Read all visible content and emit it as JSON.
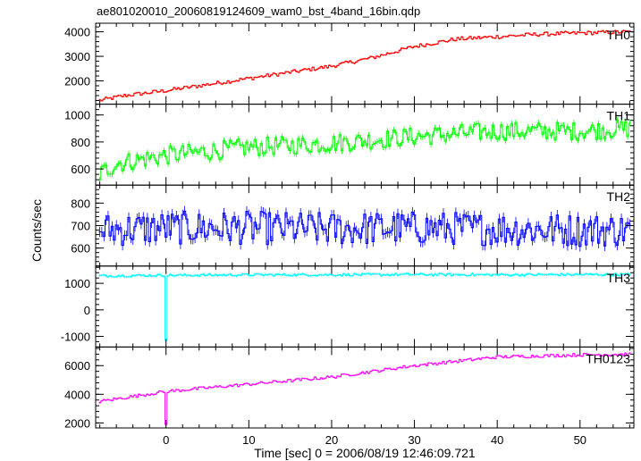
{
  "chart_data": {
    "type": "line",
    "title": "ae801020010_20060819124609_wam0_bst_4band_16bin.qdp",
    "xlabel": "Time [sec] 0 = 2006/08/19 12:46:09.721",
    "ylabel": "Counts/sec",
    "xlim": [
      -8.5,
      56.5
    ],
    "x_ticks": [
      0,
      10,
      20,
      30,
      40,
      50
    ],
    "x_tick_labels": [
      "0",
      "10",
      "20",
      "30",
      "40",
      "50"
    ],
    "bin_width_sec": 0.25,
    "panels": [
      {
        "name": "TH0",
        "color": "#ff0000",
        "ylim": [
          1050,
          4350
        ],
        "y_ticks": [
          2000,
          3000,
          4000
        ],
        "y_tick_labels": [
          "2000",
          "3000",
          "4000"
        ],
        "anchors_x": [
          -8,
          -5,
          0,
          5,
          10,
          15,
          20,
          25,
          30,
          35,
          40,
          45,
          50,
          56
        ],
        "anchors_y": [
          1200,
          1400,
          1600,
          1850,
          2100,
          2350,
          2600,
          2950,
          3400,
          3700,
          3800,
          3900,
          3950,
          4000
        ],
        "noise": 80,
        "err": 70
      },
      {
        "name": "TH1",
        "color": "#00ff00",
        "ylim": [
          480,
          1080
        ],
        "y_ticks": [
          600,
          800,
          1000
        ],
        "y_tick_labels": [
          "600",
          "800",
          "1000"
        ],
        "anchors_x": [
          -8,
          -6,
          0,
          10,
          20,
          30,
          40,
          50,
          56
        ],
        "anchors_y": [
          560,
          640,
          700,
          760,
          790,
          840,
          880,
          880,
          900
        ],
        "noise": 70,
        "err": 45
      },
      {
        "name": "TH2",
        "color": "#0000ff",
        "ylim": [
          520,
          880
        ],
        "y_ticks": [
          600,
          700,
          800
        ],
        "y_tick_labels": [
          "600",
          "700",
          "800"
        ],
        "anchors_x": [
          -8,
          0,
          10,
          20,
          30,
          40,
          50,
          56
        ],
        "anchors_y": [
          680,
          690,
          690,
          685,
          690,
          685,
          680,
          680
        ],
        "noise": 75,
        "err": 45
      },
      {
        "name": "TH3",
        "color": "#00ffff",
        "ylim": [
          -1400,
          1650
        ],
        "y_ticks": [
          -1000,
          0,
          1000
        ],
        "y_tick_labels": [
          "-1000",
          "0",
          "1000"
        ],
        "anchors_x": [
          -8,
          0,
          10,
          20,
          30,
          40,
          50,
          56
        ],
        "anchors_y": [
          1280,
          1300,
          1320,
          1320,
          1330,
          1320,
          1330,
          1330
        ],
        "noise": 45,
        "err": 90,
        "dips": [
          {
            "x": 0,
            "y": -1150
          }
        ]
      },
      {
        "name": "TH0123",
        "color": "#ff00ff",
        "ylim": [
          1650,
          7300
        ],
        "y_ticks": [
          2000,
          4000,
          6000
        ],
        "y_tick_labels": [
          "2000",
          "4000",
          "6000"
        ],
        "anchors_x": [
          -8,
          0,
          10,
          20,
          30,
          40,
          50,
          56
        ],
        "anchors_y": [
          3500,
          4200,
          4700,
          5200,
          6000,
          6600,
          6750,
          6800
        ],
        "noise": 110,
        "err": 110,
        "dips": [
          {
            "x": 0,
            "y": 1900
          }
        ]
      }
    ]
  }
}
